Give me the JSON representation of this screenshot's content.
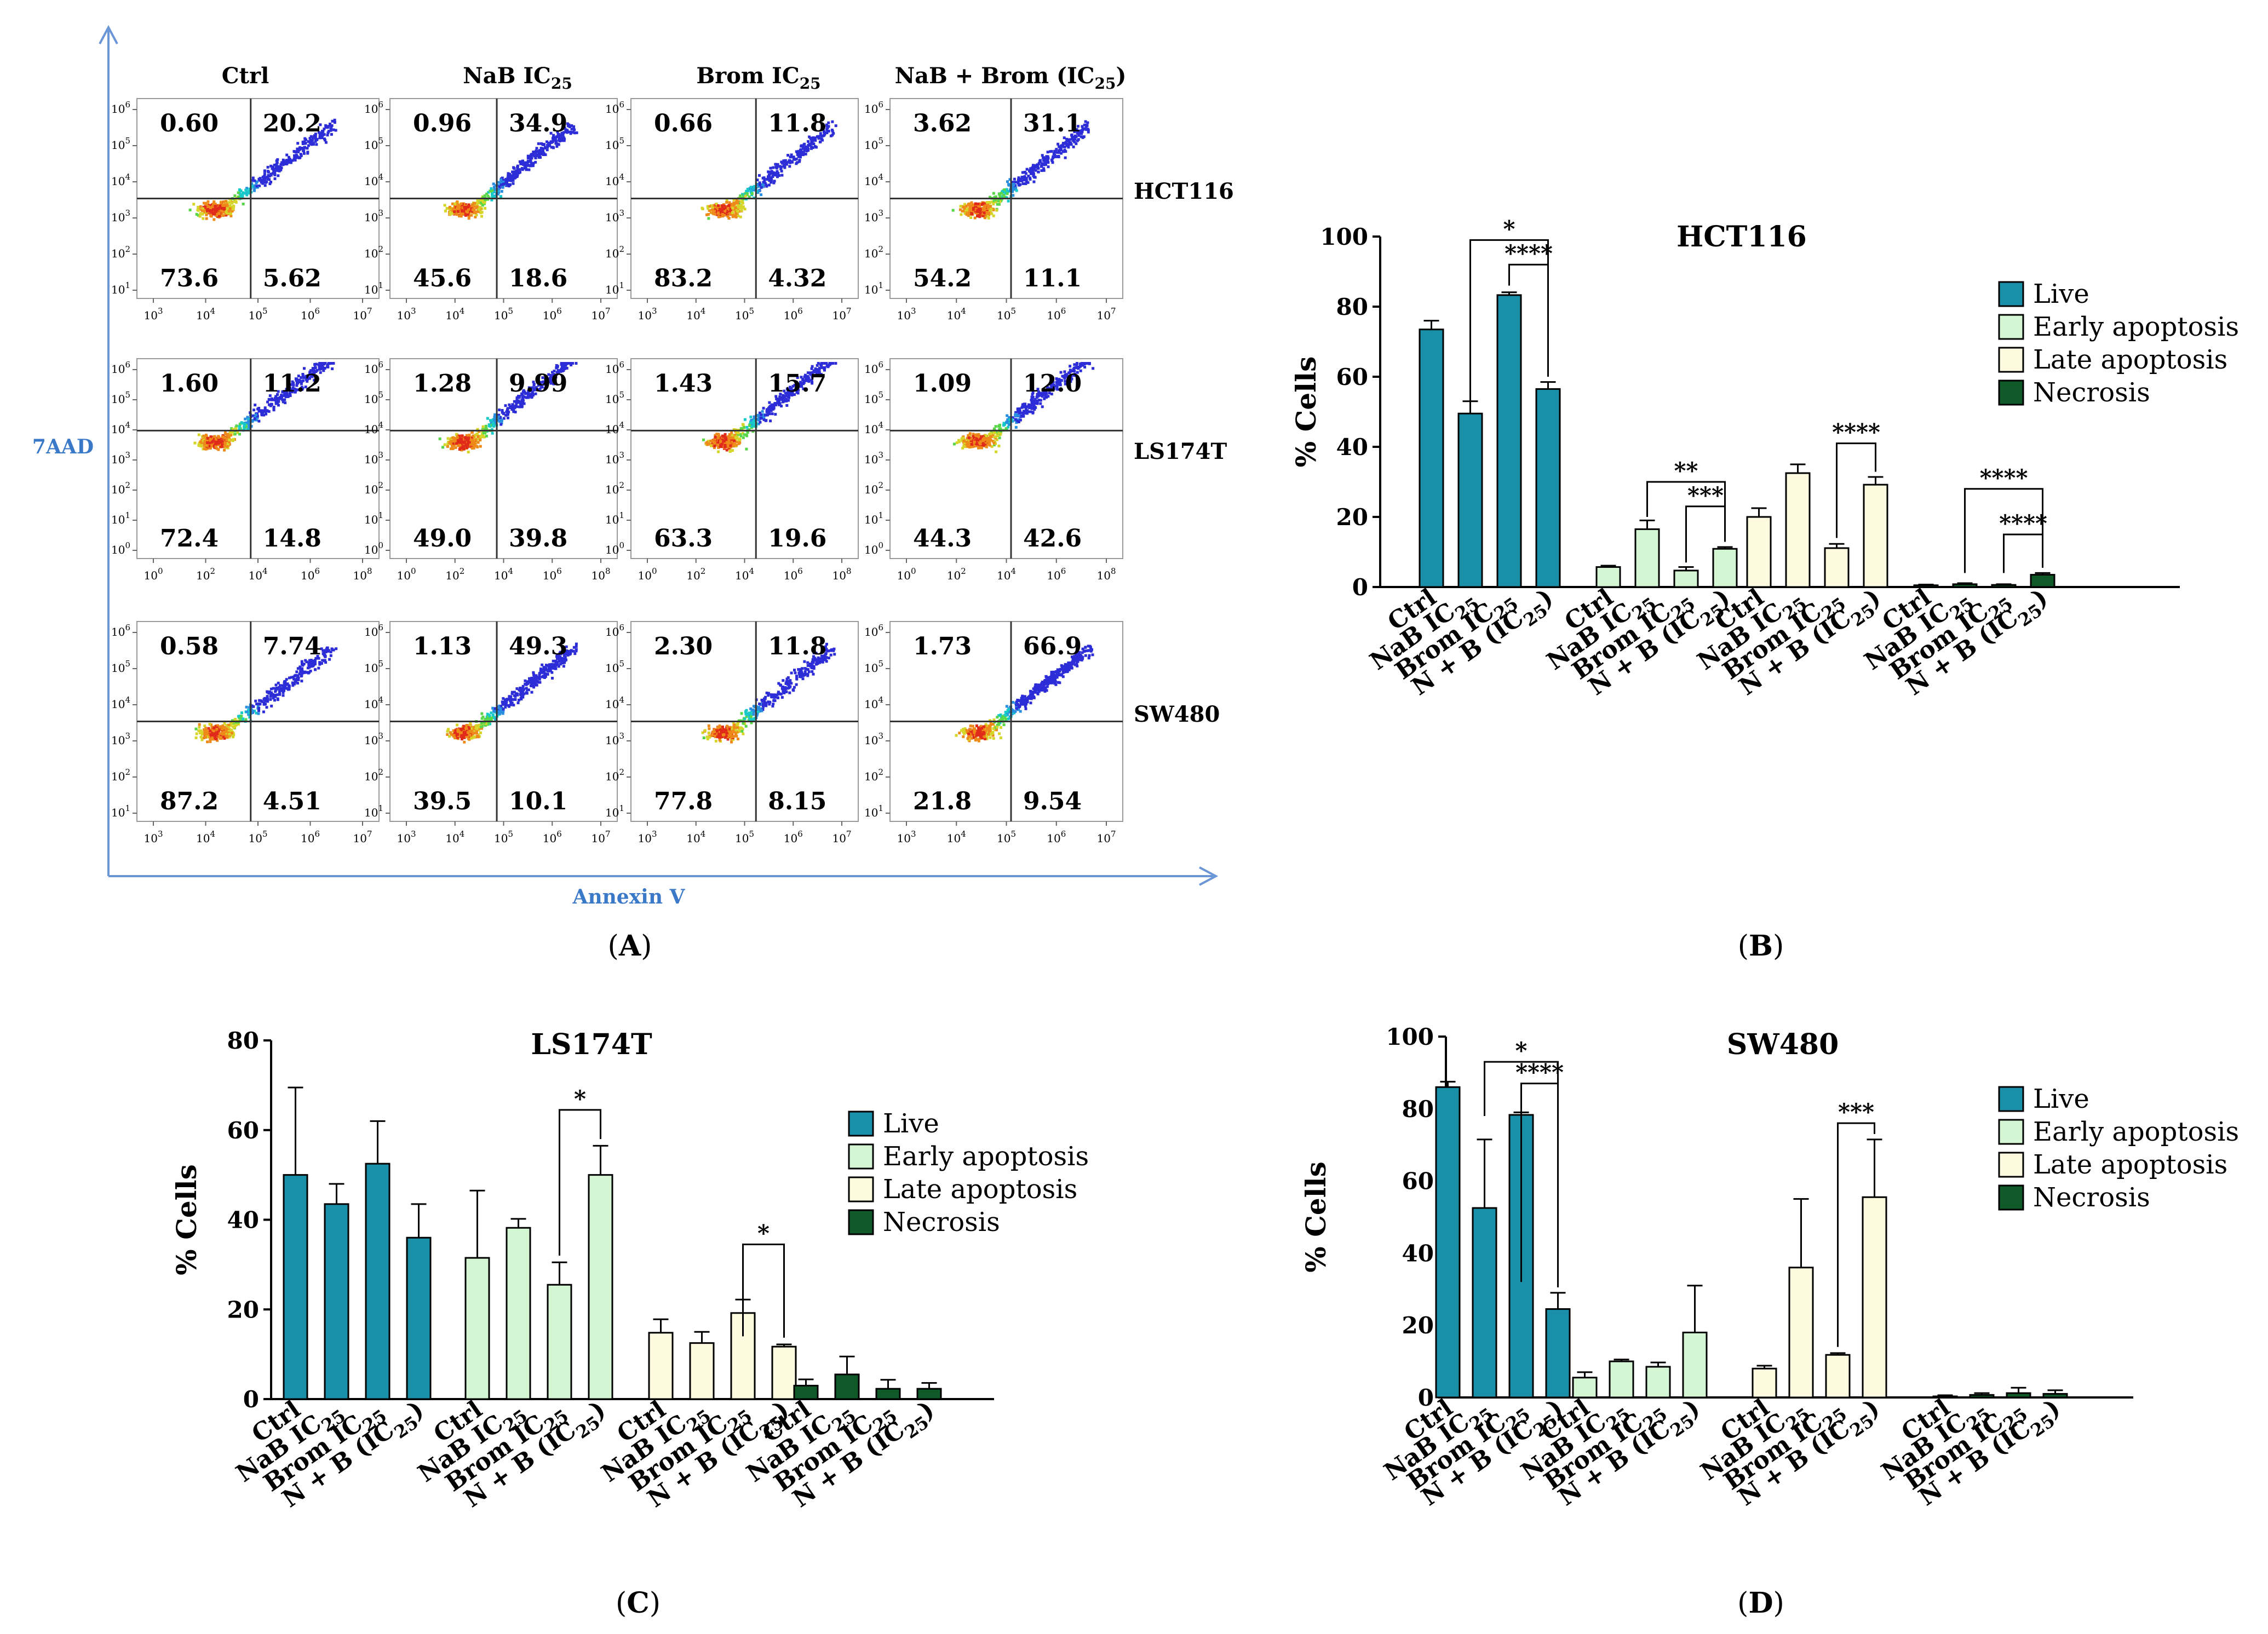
{
  "panel_a": {
    "letter": "A",
    "y_axis_label": "7AAD",
    "x_axis_label": "Annexin V",
    "column_headers": [
      "Ctrl",
      "NaB IC",
      "Brom IC",
      "NaB + Brom (IC",
      "25",
      ")"
    ],
    "columns": [
      {
        "name": "Ctrl",
        "sub": "",
        "tail": ""
      },
      {
        "name": "NaB IC",
        "sub": "25",
        "tail": ""
      },
      {
        "name": "Brom IC",
        "sub": "25",
        "tail": ""
      },
      {
        "name": "NaB + Brom (IC",
        "sub": "25",
        "tail": ")"
      }
    ],
    "rows": [
      {
        "cell_line": "HCT116",
        "x_tick_exponents": [
          "3",
          "4",
          "5",
          "6",
          "7"
        ],
        "y_tick_exponents": [
          "1",
          "2",
          "3",
          "4",
          "5",
          "6"
        ],
        "quadrants": [
          [
            "0.60",
            "20.2",
            "73.6",
            "5.62"
          ],
          [
            "0.96",
            "34.9",
            "45.6",
            "18.6"
          ],
          [
            "0.66",
            "11.8",
            "83.2",
            "4.32"
          ],
          [
            "3.62",
            "31.1",
            "54.2",
            "11.1"
          ]
        ]
      },
      {
        "cell_line": "LS174T",
        "x_tick_exponents": [
          "0",
          "2",
          "4",
          "6",
          "8"
        ],
        "y_tick_exponents": [
          "0",
          "1",
          "2",
          "3",
          "4",
          "5",
          "6"
        ],
        "quadrants": [
          [
            "1.60",
            "11.2",
            "72.4",
            "14.8"
          ],
          [
            "1.28",
            "9.99",
            "49.0",
            "39.8"
          ],
          [
            "1.43",
            "15.7",
            "63.3",
            "19.6"
          ],
          [
            "1.09",
            "12.0",
            "44.3",
            "42.6"
          ]
        ]
      },
      {
        "cell_line": "SW480",
        "x_tick_exponents": [
          "3",
          "4",
          "5",
          "6",
          "7"
        ],
        "y_tick_exponents": [
          "1",
          "2",
          "3",
          "4",
          "5",
          "6"
        ],
        "quadrants": [
          [
            "0.58",
            "7.74",
            "87.2",
            "4.51"
          ],
          [
            "1.13",
            "49.3",
            "39.5",
            "10.1"
          ],
          [
            "2.30",
            "11.8",
            "77.8",
            "8.15"
          ],
          [
            "1.73",
            "66.9",
            "21.8",
            "9.54"
          ]
        ]
      }
    ]
  },
  "bar_labels": [
    "Ctrl",
    "NaB IC",
    "Brom IC",
    "N + B (IC"
  ],
  "legend": [
    "Live",
    "Early apoptosis",
    "Late apoptosis",
    "Necrosis"
  ],
  "colors": {
    "Live": "#1a8fa8",
    "Early apoptosis": "#d4f6d4",
    "Late apoptosis": "#fdfae0",
    "Necrosis": "#0f5a28",
    "quadrant_line": "#333333",
    "axis_arrow": "#6a95d6",
    "axis_label": "#3a78c8"
  },
  "chart_data": [
    {
      "panel": "B",
      "type": "bar",
      "title": "HCT116",
      "ylabel": "% Cells",
      "ylim": [
        0,
        100
      ],
      "yticks": [
        "0",
        "20",
        "40",
        "60",
        "80",
        "100"
      ],
      "categories": [
        "Ctrl",
        "NaB IC25",
        "Brom IC25",
        "N + B (IC25)"
      ],
      "series": [
        {
          "name": "Live",
          "values": [
            73.5,
            49.5,
            83.3,
            56.5
          ],
          "errors": [
            2.5,
            3.5,
            0.8,
            2.0
          ]
        },
        {
          "name": "Early apoptosis",
          "values": [
            5.7,
            16.5,
            4.7,
            10.9
          ],
          "errors": [
            0.4,
            2.5,
            1.0,
            0.5
          ]
        },
        {
          "name": "Late apoptosis",
          "values": [
            20.0,
            32.5,
            11.1,
            29.2
          ],
          "errors": [
            2.5,
            2.5,
            1.2,
            2.2
          ]
        },
        {
          "name": "Necrosis",
          "values": [
            0.5,
            0.8,
            0.6,
            3.5
          ],
          "errors": [
            0.2,
            0.3,
            0.2,
            0.5
          ]
        }
      ],
      "significance": [
        {
          "series": 0,
          "from": 1,
          "to": 3,
          "label": "*",
          "y": 99,
          "drop_from": 50
        },
        {
          "series": 0,
          "from": 2,
          "to": 3,
          "label": "****",
          "y": 92,
          "drop_from": 86
        },
        {
          "series": 1,
          "from": 1,
          "to": 3,
          "label": "**",
          "y": 30,
          "drop_from": 20
        },
        {
          "series": 1,
          "from": 2,
          "to": 3,
          "label": "***",
          "y": 23,
          "drop_from": 7
        },
        {
          "series": 2,
          "from": 2,
          "to": 3,
          "label": "****",
          "y": 41,
          "drop_from": 14
        },
        {
          "series": 3,
          "from": 1,
          "to": 3,
          "label": "****",
          "y": 28,
          "drop_from": 4
        },
        {
          "series": 3,
          "from": 2,
          "to": 3,
          "label": "****",
          "y": 15,
          "drop_from": 4
        }
      ]
    },
    {
      "panel": "C",
      "type": "bar",
      "title": "LS174T",
      "ylabel": "% Cells",
      "ylim": [
        0,
        80
      ],
      "yticks": [
        "0",
        "20",
        "40",
        "60",
        "80"
      ],
      "categories": [
        "Ctrl",
        "NaB IC25",
        "Brom IC25",
        "N + B (IC25)"
      ],
      "series": [
        {
          "name": "Live",
          "values": [
            50.0,
            43.5,
            52.5,
            36.0
          ],
          "errors": [
            19.5,
            4.5,
            9.5,
            7.5
          ]
        },
        {
          "name": "Early apoptosis",
          "values": [
            31.5,
            38.2,
            25.5,
            50.0
          ],
          "errors": [
            15.0,
            2.0,
            5.0,
            6.5
          ]
        },
        {
          "name": "Late apoptosis",
          "values": [
            14.8,
            12.5,
            19.2,
            11.7
          ],
          "errors": [
            3.0,
            2.5,
            3.0,
            0.5
          ]
        },
        {
          "name": "Necrosis",
          "values": [
            3.0,
            5.5,
            2.3,
            2.3
          ],
          "errors": [
            1.4,
            4.0,
            2.0,
            1.3
          ]
        }
      ],
      "significance": [
        {
          "series": 1,
          "from": 2,
          "to": 3,
          "label": "*",
          "y": 64.5,
          "drop_from": 32
        },
        {
          "series": 2,
          "from": 2,
          "to": 3,
          "label": "*",
          "y": 34.5,
          "drop_from": 14
        }
      ]
    },
    {
      "panel": "D",
      "type": "bar",
      "title": "SW480",
      "ylabel": "% Cells",
      "ylim": [
        0,
        100
      ],
      "yticks": [
        "0",
        "20",
        "40",
        "60",
        "80",
        "100"
      ],
      "categories": [
        "Ctrl",
        "NaB IC25",
        "Brom IC25",
        "N + B (IC25)"
      ],
      "series": [
        {
          "name": "Live",
          "values": [
            86.0,
            52.5,
            78.3,
            24.5
          ],
          "errors": [
            1.5,
            19.0,
            0.7,
            4.5
          ]
        },
        {
          "name": "Early apoptosis",
          "values": [
            5.5,
            10.0,
            8.5,
            18.0
          ],
          "errors": [
            1.5,
            0.5,
            1.2,
            13.0
          ]
        },
        {
          "name": "Late apoptosis",
          "values": [
            8.0,
            36.0,
            11.8,
            55.5
          ],
          "errors": [
            0.8,
            19.0,
            0.5,
            16.0
          ]
        },
        {
          "name": "Necrosis",
          "values": [
            0.3,
            0.7,
            1.2,
            1.0
          ],
          "errors": [
            0.3,
            0.5,
            1.5,
            1.0
          ]
        }
      ],
      "significance": [
        {
          "series": 0,
          "from": 1,
          "to": 3,
          "label": "*",
          "y": 93,
          "drop_from": 78
        },
        {
          "series": 0,
          "from": 2,
          "to": 3,
          "label": "****",
          "y": 87,
          "drop_from": 32
        },
        {
          "series": 2,
          "from": 2,
          "to": 3,
          "label": "***",
          "y": 76,
          "drop_from": 14
        }
      ]
    }
  ]
}
